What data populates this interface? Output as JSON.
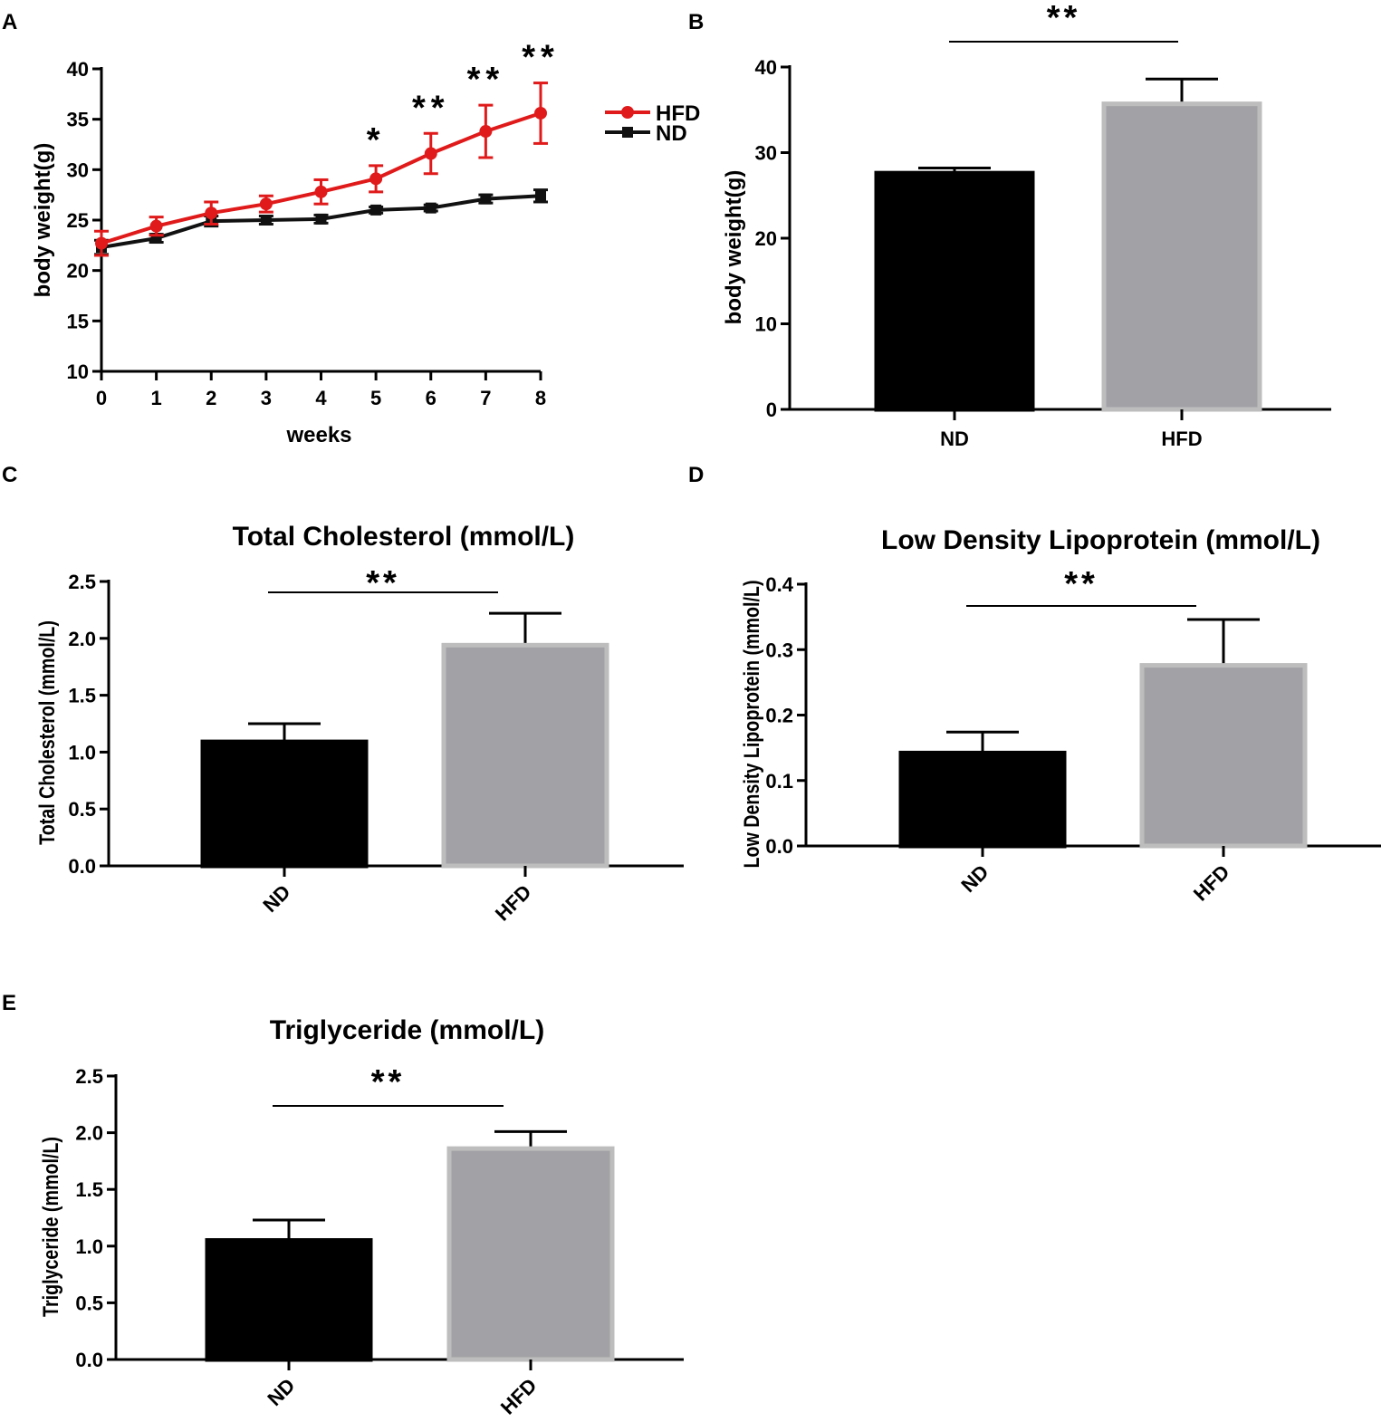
{
  "panels": {
    "A": "A",
    "B": "B",
    "C": "C",
    "D": "D",
    "E": "E"
  },
  "colors": {
    "hfd_line": "#e01a1a",
    "nd_line": "#111111",
    "nd_bar": "#000000",
    "hfd_bar": "#a2a2a6",
    "hfd_bar_edge": "#bdbdbd"
  },
  "chart_data": [
    {
      "id": "A",
      "type": "line",
      "title": "",
      "xlabel": "weeks",
      "ylabel": "body weight(g)",
      "x": [
        0,
        1,
        2,
        3,
        4,
        5,
        6,
        7,
        8
      ],
      "xticks": [
        "0",
        "1",
        "2",
        "3",
        "4",
        "5",
        "6",
        "7",
        "8"
      ],
      "ylim": [
        10,
        40
      ],
      "yticks": [
        "10",
        "15",
        "20",
        "25",
        "30",
        "35",
        "40"
      ],
      "legend": "top-right",
      "series": [
        {
          "name": "HFD",
          "marker": "circle",
          "values": [
            22.7,
            24.4,
            25.7,
            26.6,
            27.8,
            29.1,
            31.6,
            33.8,
            35.6
          ],
          "errors": [
            1.2,
            0.9,
            1.1,
            0.8,
            1.2,
            1.3,
            2.0,
            2.6,
            3.0
          ]
        },
        {
          "name": "ND",
          "marker": "square",
          "values": [
            22.3,
            23.2,
            24.9,
            25.0,
            25.1,
            26.0,
            26.2,
            27.1,
            27.4
          ],
          "errors": [
            0.7,
            0.4,
            0.5,
            0.4,
            0.4,
            0.3,
            0.3,
            0.4,
            0.6
          ]
        }
      ],
      "significance": [
        {
          "x": 5,
          "label": "*"
        },
        {
          "x": 6,
          "label": "**"
        },
        {
          "x": 7,
          "label": "**"
        },
        {
          "x": 8,
          "label": "**"
        }
      ]
    },
    {
      "id": "B",
      "type": "bar",
      "title": "",
      "xlabel": "",
      "ylabel": "body weight(g)",
      "categories": [
        "ND",
        "HFD"
      ],
      "values": [
        27.6,
        35.7
      ],
      "errors": [
        0.6,
        2.9
      ],
      "ylim": [
        0,
        40
      ],
      "yticks": [
        "0",
        "10",
        "20",
        "30",
        "40"
      ],
      "significance": "**",
      "rotate_xticks": false
    },
    {
      "id": "C",
      "type": "bar",
      "title": "Total Cholesterol (mmol/L)",
      "xlabel": "",
      "ylabel": "Total Cholesterol (mmol/L)",
      "categories": [
        "ND",
        "HFD"
      ],
      "values": [
        1.09,
        1.94
      ],
      "errors": [
        0.16,
        0.28
      ],
      "ylim": [
        0,
        2.5
      ],
      "yticks": [
        "0.0",
        "0.5",
        "1.0",
        "1.5",
        "2.0",
        "2.5"
      ],
      "significance": "**",
      "rotate_xticks": true
    },
    {
      "id": "D",
      "type": "bar",
      "title": "Low Density Lipoprotein (mmol/L)",
      "xlabel": "",
      "ylabel": "Low Density Lipoprotein (mmol/L)",
      "categories": [
        "ND",
        "HFD"
      ],
      "values": [
        0.142,
        0.276
      ],
      "errors": [
        0.032,
        0.07
      ],
      "ylim": [
        0,
        0.4
      ],
      "yticks": [
        "0.0",
        "0.1",
        "0.2",
        "0.3",
        "0.4"
      ],
      "significance": "**",
      "rotate_xticks": true
    },
    {
      "id": "E",
      "type": "bar",
      "title": "Triglyceride (mmol/L)",
      "xlabel": "",
      "ylabel": "Triglyceride (mmol/L)",
      "categories": [
        "ND",
        "HFD"
      ],
      "values": [
        1.05,
        1.86
      ],
      "errors": [
        0.18,
        0.15
      ],
      "ylim": [
        0,
        2.5
      ],
      "yticks": [
        "0.0",
        "0.5",
        "1.0",
        "1.5",
        "2.0",
        "2.5"
      ],
      "significance": "**",
      "rotate_xticks": true
    }
  ]
}
